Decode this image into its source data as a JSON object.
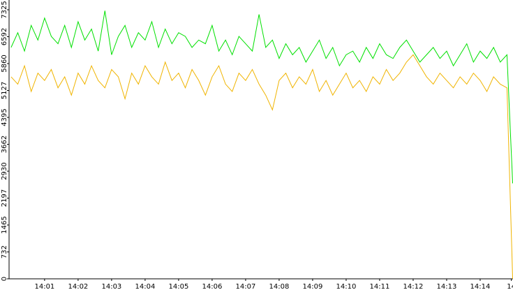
{
  "chart_data": {
    "type": "line",
    "x": [
      0,
      0.2,
      0.4,
      0.6,
      0.8,
      1,
      1.2,
      1.4,
      1.6,
      1.8,
      2,
      2.2,
      2.4,
      2.6,
      2.8,
      3,
      3.2,
      3.4,
      3.6,
      3.8,
      4,
      4.2,
      4.4,
      4.6,
      4.8,
      5,
      5.2,
      5.4,
      5.6,
      5.8,
      6,
      6.2,
      6.4,
      6.6,
      6.8,
      7,
      7.2,
      7.4,
      7.6,
      7.8,
      8,
      8.2,
      8.4,
      8.6,
      8.8,
      9,
      9.2,
      9.4,
      9.6,
      9.8,
      10,
      10.2,
      10.4,
      10.6,
      10.8,
      11,
      11.2,
      11.4,
      11.6,
      11.8,
      12,
      12.2,
      12.4,
      12.6,
      12.8,
      13,
      13.2,
      13.4,
      13.6,
      13.8,
      14,
      14.2,
      14.4,
      14.6,
      14.8,
      14.97
    ],
    "series": [
      {
        "color": "#00e000",
        "values": [
          6300,
          6700,
          6200,
          6900,
          6500,
          7100,
          6600,
          6400,
          6900,
          6300,
          7000,
          6500,
          6800,
          6200,
          7300,
          6100,
          6600,
          6900,
          6300,
          6700,
          6500,
          7000,
          6300,
          6800,
          6400,
          6700,
          6600,
          6300,
          6500,
          6400,
          6900,
          6200,
          6500,
          6100,
          6600,
          6400,
          6200,
          7200,
          6300,
          6500,
          6000,
          6400,
          6100,
          6300,
          5900,
          6200,
          6500,
          6000,
          6300,
          5800,
          6100,
          6200,
          5900,
          6300,
          6000,
          6400,
          6100,
          6000,
          6300,
          6500,
          6200,
          5900,
          6100,
          6300,
          6000,
          6200,
          5800,
          6100,
          6400,
          5900,
          6200,
          6000,
          6300,
          5900,
          6100,
          2600
        ]
      },
      {
        "color": "#f0b400",
        "values": [
          5500,
          5300,
          5800,
          5100,
          5600,
          5400,
          5700,
          5200,
          5500,
          5000,
          5600,
          5300,
          5800,
          5400,
          5200,
          5700,
          5500,
          4900,
          5600,
          5300,
          5800,
          5500,
          5300,
          5900,
          5400,
          5600,
          5200,
          5700,
          5400,
          5000,
          5500,
          5800,
          5300,
          5100,
          5600,
          5400,
          5700,
          5300,
          5000,
          4600,
          5400,
          5600,
          5200,
          5500,
          5300,
          5700,
          5100,
          5400,
          5000,
          5300,
          5600,
          5200,
          5400,
          5100,
          5500,
          5300,
          5700,
          5400,
          5600,
          5900,
          6100,
          5800,
          5500,
          5300,
          5600,
          5400,
          5200,
          5500,
          5300,
          5600,
          5400,
          5100,
          5500,
          5300,
          5200,
          0
        ]
      }
    ],
    "xlim": [
      -0.06,
      14.98
    ],
    "xticks": [
      {
        "value": 1,
        "label": "14:01"
      },
      {
        "value": 2,
        "label": "14:02"
      },
      {
        "value": 3,
        "label": "14:03"
      },
      {
        "value": 4,
        "label": "14:04"
      },
      {
        "value": 5,
        "label": "14:05"
      },
      {
        "value": 6,
        "label": "14:06"
      },
      {
        "value": 7,
        "label": "14:07"
      },
      {
        "value": 8,
        "label": "14:08"
      },
      {
        "value": 9,
        "label": "14:09"
      },
      {
        "value": 10,
        "label": "14:10"
      },
      {
        "value": 11,
        "label": "14:11"
      },
      {
        "value": 12,
        "label": "14:12"
      },
      {
        "value": 13,
        "label": "14:13"
      },
      {
        "value": 14,
        "label": "14:14"
      },
      {
        "value": 14.93,
        "label": "14"
      }
    ],
    "ylim": [
      0,
      7591
    ],
    "yticks": [
      0,
      732,
      1465,
      2197,
      2930,
      3662,
      4395,
      5127,
      5860,
      6592,
      7325
    ]
  }
}
